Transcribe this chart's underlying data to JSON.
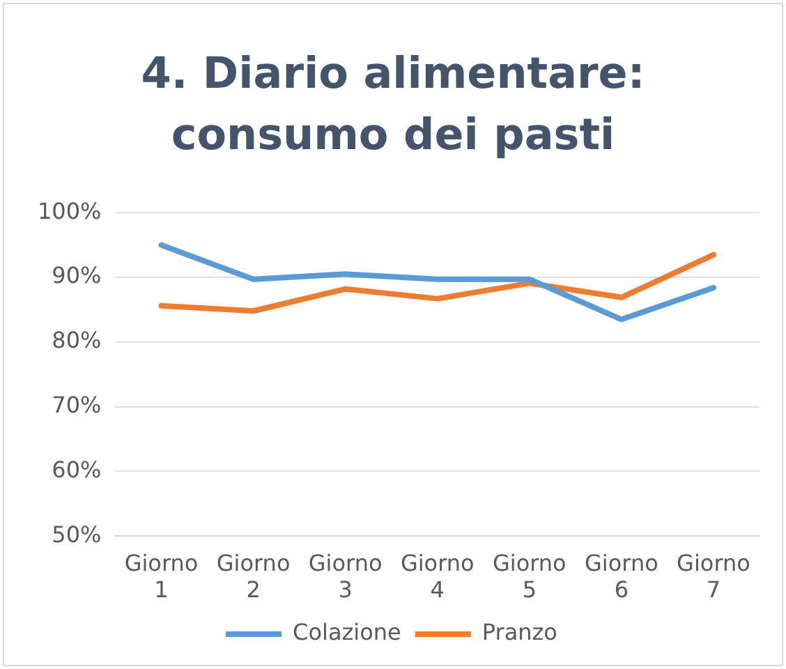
{
  "chart_data": {
    "type": "line",
    "title": "4. Diario alimentare: consumo dei pasti",
    "categories": [
      "Giorno 1",
      "Giorno 2",
      "Giorno 3",
      "Giorno 4",
      "Giorno 5",
      "Giorno 6",
      "Giorno 7"
    ],
    "series": [
      {
        "name": "Colazione",
        "color": "#5b9bd5",
        "values": [
          95,
          89.7,
          90.5,
          89.7,
          89.7,
          83.5,
          88.4
        ]
      },
      {
        "name": "Pranzo",
        "color": "#ed7d31",
        "values": [
          85.6,
          84.8,
          88.2,
          86.7,
          89.1,
          86.9,
          93.5
        ]
      }
    ],
    "ylim": [
      50,
      100
    ],
    "yticks": [
      {
        "value": 50,
        "label": "50%"
      },
      {
        "value": 60,
        "label": "60%"
      },
      {
        "value": 70,
        "label": "70%"
      },
      {
        "value": 80,
        "label": "80%"
      },
      {
        "value": 90,
        "label": "90%"
      },
      {
        "value": 100,
        "label": "100%"
      }
    ],
    "grid": "y",
    "legend": "bottom",
    "marker": "none",
    "line_style": "solid"
  }
}
